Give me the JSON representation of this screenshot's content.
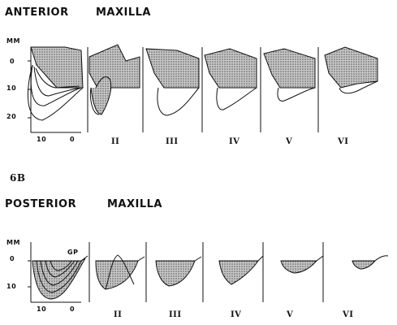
{
  "anterior": {
    "title_left": "ANTERIOR",
    "title_right": "MAXILLA",
    "unit": "MM",
    "yticks": [
      "0",
      "10",
      "20"
    ],
    "xticks": [
      "10",
      "0"
    ],
    "romans": [
      "II",
      "III",
      "IV",
      "V",
      "VI"
    ]
  },
  "figure_label": "6B",
  "posterior": {
    "title_left": "POSTERIOR",
    "title_right": "MAXILLA",
    "unit": "MM",
    "yticks": [
      "0",
      "10"
    ],
    "xticks": [
      "10",
      "0"
    ],
    "romans": [
      "II",
      "III",
      "IV",
      "V",
      "VI"
    ],
    "annotation": "GP"
  },
  "colors": {
    "ink": "#111111",
    "fill": "#9a9a9a"
  }
}
